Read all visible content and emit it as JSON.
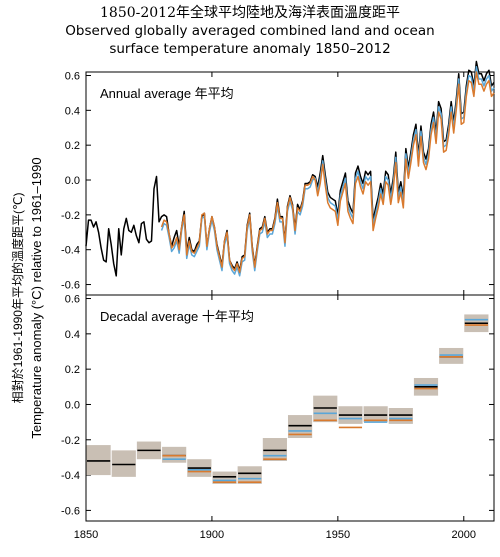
{
  "title_cn": "1850-2012年全球平均陸地及海洋表面溫度距平",
  "title_en_line1": "Observed globally averaged combined land and ocean",
  "title_en_line2": "surface temperature anomaly 1850–2012",
  "ylabel_cn": "相對於1961-1990年平均的溫度距平(℃)",
  "ylabel_en": "Temperature anomaly (°C) relative to 1961–1990",
  "colors": {
    "black": "#000000",
    "blue": "#5aa6d8",
    "orange": "#d97a2e",
    "box": "#c9bfb4"
  },
  "chart_data": [
    {
      "type": "line",
      "panel_label": "Annual average  年平均",
      "xlim": [
        1850,
        2012
      ],
      "ylim": [
        -0.66,
        0.62
      ],
      "yticks": [
        -0.6,
        -0.4,
        -0.2,
        0.0,
        0.2,
        0.4,
        0.6
      ],
      "ytick_labels": [
        "-0.6",
        "-0.4",
        "-0.2",
        "0.0",
        "0.2",
        "0.4",
        "0.6"
      ],
      "series": [
        {
          "color": "black",
          "x": [
            1850,
            1851,
            1852,
            1853,
            1854,
            1855,
            1856,
            1857,
            1858,
            1859,
            1860,
            1861,
            1862,
            1863,
            1864,
            1865,
            1866,
            1867,
            1868,
            1869,
            1870,
            1871,
            1872,
            1873,
            1874,
            1875,
            1876,
            1877,
            1878,
            1879,
            1880,
            1881,
            1882,
            1883,
            1884,
            1885,
            1886,
            1887,
            1888,
            1889,
            1890,
            1891,
            1892,
            1893,
            1894,
            1895,
            1896,
            1897,
            1898,
            1899,
            1900,
            1901,
            1902,
            1903,
            1904,
            1905,
            1906,
            1907,
            1908,
            1909,
            1910,
            1911,
            1912,
            1913,
            1914,
            1915,
            1916,
            1917,
            1918,
            1919,
            1920,
            1921,
            1922,
            1923,
            1924,
            1925,
            1926,
            1927,
            1928,
            1929,
            1930,
            1931,
            1932,
            1933,
            1934,
            1935,
            1936,
            1937,
            1938,
            1939,
            1940,
            1941,
            1942,
            1943,
            1944,
            1945,
            1946,
            1947,
            1948,
            1949,
            1950,
            1951,
            1952,
            1953,
            1954,
            1955,
            1956,
            1957,
            1958,
            1959,
            1960,
            1961,
            1962,
            1963,
            1964,
            1965,
            1966,
            1967,
            1968,
            1969,
            1970,
            1971,
            1972,
            1973,
            1974,
            1975,
            1976,
            1977,
            1978,
            1979,
            1980,
            1981,
            1982,
            1983,
            1984,
            1985,
            1986,
            1987,
            1988,
            1989,
            1990,
            1991,
            1992,
            1993,
            1994,
            1995,
            1996,
            1997,
            1998,
            1999,
            2000,
            2001,
            2002,
            2003,
            2004,
            2005,
            2006,
            2007,
            2008,
            2009,
            2010,
            2011,
            2012
          ],
          "values": [
            -0.38,
            -0.23,
            -0.23,
            -0.27,
            -0.24,
            -0.3,
            -0.39,
            -0.46,
            -0.47,
            -0.28,
            -0.37,
            -0.48,
            -0.55,
            -0.28,
            -0.43,
            -0.28,
            -0.22,
            -0.29,
            -0.3,
            -0.26,
            -0.32,
            -0.36,
            -0.25,
            -0.24,
            -0.34,
            -0.36,
            -0.35,
            -0.05,
            0.02,
            -0.24,
            -0.21,
            -0.2,
            -0.21,
            -0.31,
            -0.38,
            -0.33,
            -0.29,
            -0.38,
            -0.27,
            -0.18,
            -0.41,
            -0.33,
            -0.4,
            -0.41,
            -0.37,
            -0.35,
            -0.21,
            -0.19,
            -0.38,
            -0.28,
            -0.21,
            -0.27,
            -0.37,
            -0.43,
            -0.49,
            -0.35,
            -0.29,
            -0.46,
            -0.49,
            -0.51,
            -0.47,
            -0.52,
            -0.44,
            -0.43,
            -0.26,
            -0.19,
            -0.38,
            -0.49,
            -0.38,
            -0.28,
            -0.27,
            -0.21,
            -0.3,
            -0.28,
            -0.28,
            -0.22,
            -0.11,
            -0.21,
            -0.21,
            -0.35,
            -0.15,
            -0.09,
            -0.14,
            -0.28,
            -0.14,
            -0.17,
            -0.12,
            -0.02,
            -0.02,
            -0.01,
            0.03,
            0.02,
            -0.04,
            0.04,
            0.14,
            0.03,
            -0.07,
            -0.1,
            -0.11,
            -0.12,
            -0.2,
            -0.06,
            -0.01,
            0.04,
            -0.12,
            -0.16,
            -0.19,
            0.04,
            0.08,
            0.02,
            -0.02,
            0.05,
            0.03,
            0.05,
            -0.23,
            -0.16,
            -0.1,
            -0.02,
            -0.08,
            0.05,
            0.03,
            -0.08,
            0.01,
            0.16,
            -0.07,
            -0.01,
            -0.1,
            0.18,
            0.07,
            0.16,
            0.26,
            0.32,
            0.14,
            0.31,
            0.16,
            0.12,
            0.18,
            0.32,
            0.39,
            0.27,
            0.45,
            0.41,
            0.22,
            0.23,
            0.32,
            0.45,
            0.33,
            0.46,
            0.61,
            0.38,
            0.39,
            0.54,
            0.63,
            0.62,
            0.54,
            0.68,
            0.61,
            0.61,
            0.57,
            0.61,
            0.63,
            0.54,
            0.56
          ]
        },
        {
          "color": "blue",
          "x": [
            1880,
            1881,
            1882,
            1883,
            1884,
            1885,
            1886,
            1887,
            1888,
            1889,
            1890,
            1891,
            1892,
            1893,
            1894,
            1895,
            1896,
            1897,
            1898,
            1899,
            1900,
            1901,
            1902,
            1903,
            1904,
            1905,
            1906,
            1907,
            1908,
            1909,
            1910,
            1911,
            1912,
            1913,
            1914,
            1915,
            1916,
            1917,
            1918,
            1919,
            1920,
            1921,
            1922,
            1923,
            1924,
            1925,
            1926,
            1927,
            1928,
            1929,
            1930,
            1931,
            1932,
            1933,
            1934,
            1935,
            1936,
            1937,
            1938,
            1939,
            1940,
            1941,
            1942,
            1943,
            1944,
            1945,
            1946,
            1947,
            1948,
            1949,
            1950,
            1951,
            1952,
            1953,
            1954,
            1955,
            1956,
            1957,
            1958,
            1959,
            1960,
            1961,
            1962,
            1963,
            1964,
            1965,
            1966,
            1967,
            1968,
            1969,
            1970,
            1971,
            1972,
            1973,
            1974,
            1975,
            1976,
            1977,
            1978,
            1979,
            1980,
            1981,
            1982,
            1983,
            1984,
            1985,
            1986,
            1987,
            1988,
            1989,
            1990,
            1991,
            1992,
            1993,
            1994,
            1995,
            1996,
            1997,
            1998,
            1999,
            2000,
            2001,
            2002,
            2003,
            2004,
            2005,
            2006,
            2007,
            2008,
            2009,
            2010,
            2011,
            2012
          ],
          "values": [
            -0.29,
            -0.25,
            -0.26,
            -0.33,
            -0.41,
            -0.39,
            -0.35,
            -0.42,
            -0.29,
            -0.22,
            -0.45,
            -0.37,
            -0.43,
            -0.44,
            -0.41,
            -0.38,
            -0.22,
            -0.21,
            -0.4,
            -0.3,
            -0.23,
            -0.29,
            -0.4,
            -0.46,
            -0.52,
            -0.37,
            -0.32,
            -0.48,
            -0.52,
            -0.54,
            -0.5,
            -0.55,
            -0.47,
            -0.46,
            -0.29,
            -0.22,
            -0.41,
            -0.52,
            -0.41,
            -0.31,
            -0.3,
            -0.24,
            -0.33,
            -0.31,
            -0.31,
            -0.25,
            -0.15,
            -0.24,
            -0.24,
            -0.38,
            -0.18,
            -0.12,
            -0.17,
            -0.31,
            -0.18,
            -0.2,
            -0.15,
            -0.05,
            -0.05,
            -0.04,
            0.0,
            0.01,
            -0.07,
            0.01,
            0.11,
            0.0,
            -0.1,
            -0.13,
            -0.14,
            -0.15,
            -0.23,
            -0.09,
            -0.04,
            0.01,
            -0.15,
            -0.19,
            -0.22,
            0.01,
            0.05,
            -0.01,
            -0.05,
            0.02,
            0.0,
            0.02,
            -0.26,
            -0.19,
            -0.13,
            -0.05,
            -0.11,
            0.02,
            0.0,
            -0.11,
            -0.02,
            0.13,
            -0.1,
            -0.04,
            -0.13,
            0.15,
            0.04,
            0.13,
            0.23,
            0.29,
            0.11,
            0.28,
            0.13,
            0.09,
            0.15,
            0.29,
            0.36,
            0.24,
            0.42,
            0.38,
            0.19,
            0.2,
            0.29,
            0.42,
            0.3,
            0.43,
            0.58,
            0.35,
            0.36,
            0.51,
            0.6,
            0.59,
            0.51,
            0.65,
            0.58,
            0.58,
            0.54,
            0.58,
            0.6,
            0.51,
            0.53
          ]
        },
        {
          "color": "orange",
          "x": [
            1880,
            1881,
            1882,
            1883,
            1884,
            1885,
            1886,
            1887,
            1888,
            1889,
            1890,
            1891,
            1892,
            1893,
            1894,
            1895,
            1896,
            1897,
            1898,
            1899,
            1900,
            1901,
            1902,
            1903,
            1904,
            1905,
            1906,
            1907,
            1908,
            1909,
            1910,
            1911,
            1912,
            1913,
            1914,
            1915,
            1916,
            1917,
            1918,
            1919,
            1920,
            1921,
            1922,
            1923,
            1924,
            1925,
            1926,
            1927,
            1928,
            1929,
            1930,
            1931,
            1932,
            1933,
            1934,
            1935,
            1936,
            1937,
            1938,
            1939,
            1940,
            1941,
            1942,
            1943,
            1944,
            1945,
            1946,
            1947,
            1948,
            1949,
            1950,
            1951,
            1952,
            1953,
            1954,
            1955,
            1956,
            1957,
            1958,
            1959,
            1960,
            1961,
            1962,
            1963,
            1964,
            1965,
            1966,
            1967,
            1968,
            1969,
            1970,
            1971,
            1972,
            1973,
            1974,
            1975,
            1976,
            1977,
            1978,
            1979,
            1980,
            1981,
            1982,
            1983,
            1984,
            1985,
            1986,
            1987,
            1988,
            1989,
            1990,
            1991,
            1992,
            1993,
            1994,
            1995,
            1996,
            1997,
            1998,
            1999,
            2000,
            2001,
            2002,
            2003,
            2004,
            2005,
            2006,
            2007,
            2008,
            2009,
            2010,
            2011,
            2012
          ],
          "values": [
            -0.27,
            -0.23,
            -0.24,
            -0.31,
            -0.39,
            -0.37,
            -0.33,
            -0.4,
            -0.27,
            -0.2,
            -0.43,
            -0.35,
            -0.41,
            -0.42,
            -0.39,
            -0.36,
            -0.2,
            -0.19,
            -0.38,
            -0.28,
            -0.21,
            -0.27,
            -0.38,
            -0.44,
            -0.5,
            -0.35,
            -0.3,
            -0.46,
            -0.5,
            -0.52,
            -0.48,
            -0.53,
            -0.45,
            -0.44,
            -0.27,
            -0.2,
            -0.39,
            -0.5,
            -0.39,
            -0.29,
            -0.28,
            -0.22,
            -0.31,
            -0.29,
            -0.29,
            -0.23,
            -0.13,
            -0.22,
            -0.22,
            -0.36,
            -0.16,
            -0.1,
            -0.15,
            -0.29,
            -0.16,
            -0.18,
            -0.13,
            -0.03,
            -0.03,
            -0.02,
            0.02,
            0.0,
            -0.09,
            -0.02,
            0.09,
            -0.03,
            -0.13,
            -0.16,
            -0.17,
            -0.18,
            -0.26,
            -0.12,
            -0.07,
            -0.02,
            -0.18,
            -0.22,
            -0.25,
            -0.02,
            0.02,
            -0.04,
            -0.08,
            -0.01,
            -0.03,
            -0.01,
            -0.29,
            -0.22,
            -0.16,
            -0.08,
            -0.14,
            -0.01,
            -0.03,
            -0.14,
            -0.05,
            0.1,
            -0.13,
            -0.07,
            -0.16,
            0.12,
            0.01,
            0.1,
            0.2,
            0.26,
            0.08,
            0.25,
            0.1,
            0.06,
            0.12,
            0.26,
            0.33,
            0.21,
            0.39,
            0.35,
            0.16,
            0.17,
            0.26,
            0.39,
            0.27,
            0.4,
            0.55,
            0.32,
            0.33,
            0.48,
            0.57,
            0.56,
            0.48,
            0.62,
            0.55,
            0.55,
            0.51,
            0.55,
            0.57,
            0.48,
            0.5
          ]
        }
      ]
    },
    {
      "type": "bar",
      "panel_label": "Decadal average  十年平均",
      "xlim": [
        1850,
        2012
      ],
      "ylim": [
        -0.66,
        0.62
      ],
      "yticks": [
        -0.6,
        -0.4,
        -0.2,
        0.0,
        0.2,
        0.4,
        0.6
      ],
      "ytick_labels": [
        "-0.6",
        "-0.4",
        "-0.2",
        "0.0",
        "0.2",
        "0.4",
        "0.6"
      ],
      "xticks": [
        1850,
        1900,
        1950,
        2000
      ],
      "xtick_labels": [
        "1850",
        "1900",
        "1950",
        "2000"
      ],
      "decades": [
        1850,
        1860,
        1870,
        1880,
        1890,
        1900,
        1910,
        1920,
        1930,
        1940,
        1950,
        1960,
        1970,
        1980,
        1990,
        2000
      ],
      "box_low": [
        -0.4,
        -0.41,
        -0.31,
        -0.33,
        -0.41,
        -0.45,
        -0.45,
        -0.32,
        -0.19,
        -0.1,
        -0.11,
        -0.1,
        -0.11,
        0.05,
        0.23,
        0.41
      ],
      "box_high": [
        -0.23,
        -0.26,
        -0.21,
        -0.24,
        -0.31,
        -0.38,
        -0.35,
        -0.19,
        -0.06,
        0.05,
        -0.01,
        -0.01,
        -0.02,
        0.15,
        0.32,
        0.51
      ],
      "series": [
        {
          "color": "black",
          "values": [
            -0.32,
            -0.34,
            -0.26,
            -0.29,
            -0.36,
            -0.41,
            -0.39,
            -0.26,
            -0.12,
            -0.02,
            -0.06,
            -0.06,
            -0.06,
            0.1,
            0.27,
            0.46
          ]
        },
        {
          "color": "blue",
          "values": [
            null,
            null,
            null,
            -0.31,
            -0.37,
            -0.43,
            -0.42,
            -0.29,
            -0.15,
            -0.05,
            -0.08,
            -0.1,
            -0.08,
            0.11,
            0.28,
            0.48
          ]
        },
        {
          "color": "orange",
          "values": [
            null,
            null,
            null,
            -0.29,
            -0.38,
            -0.44,
            -0.44,
            -0.31,
            -0.17,
            -0.09,
            -0.13,
            -0.09,
            -0.09,
            0.09,
            0.27,
            0.45
          ]
        }
      ]
    }
  ]
}
